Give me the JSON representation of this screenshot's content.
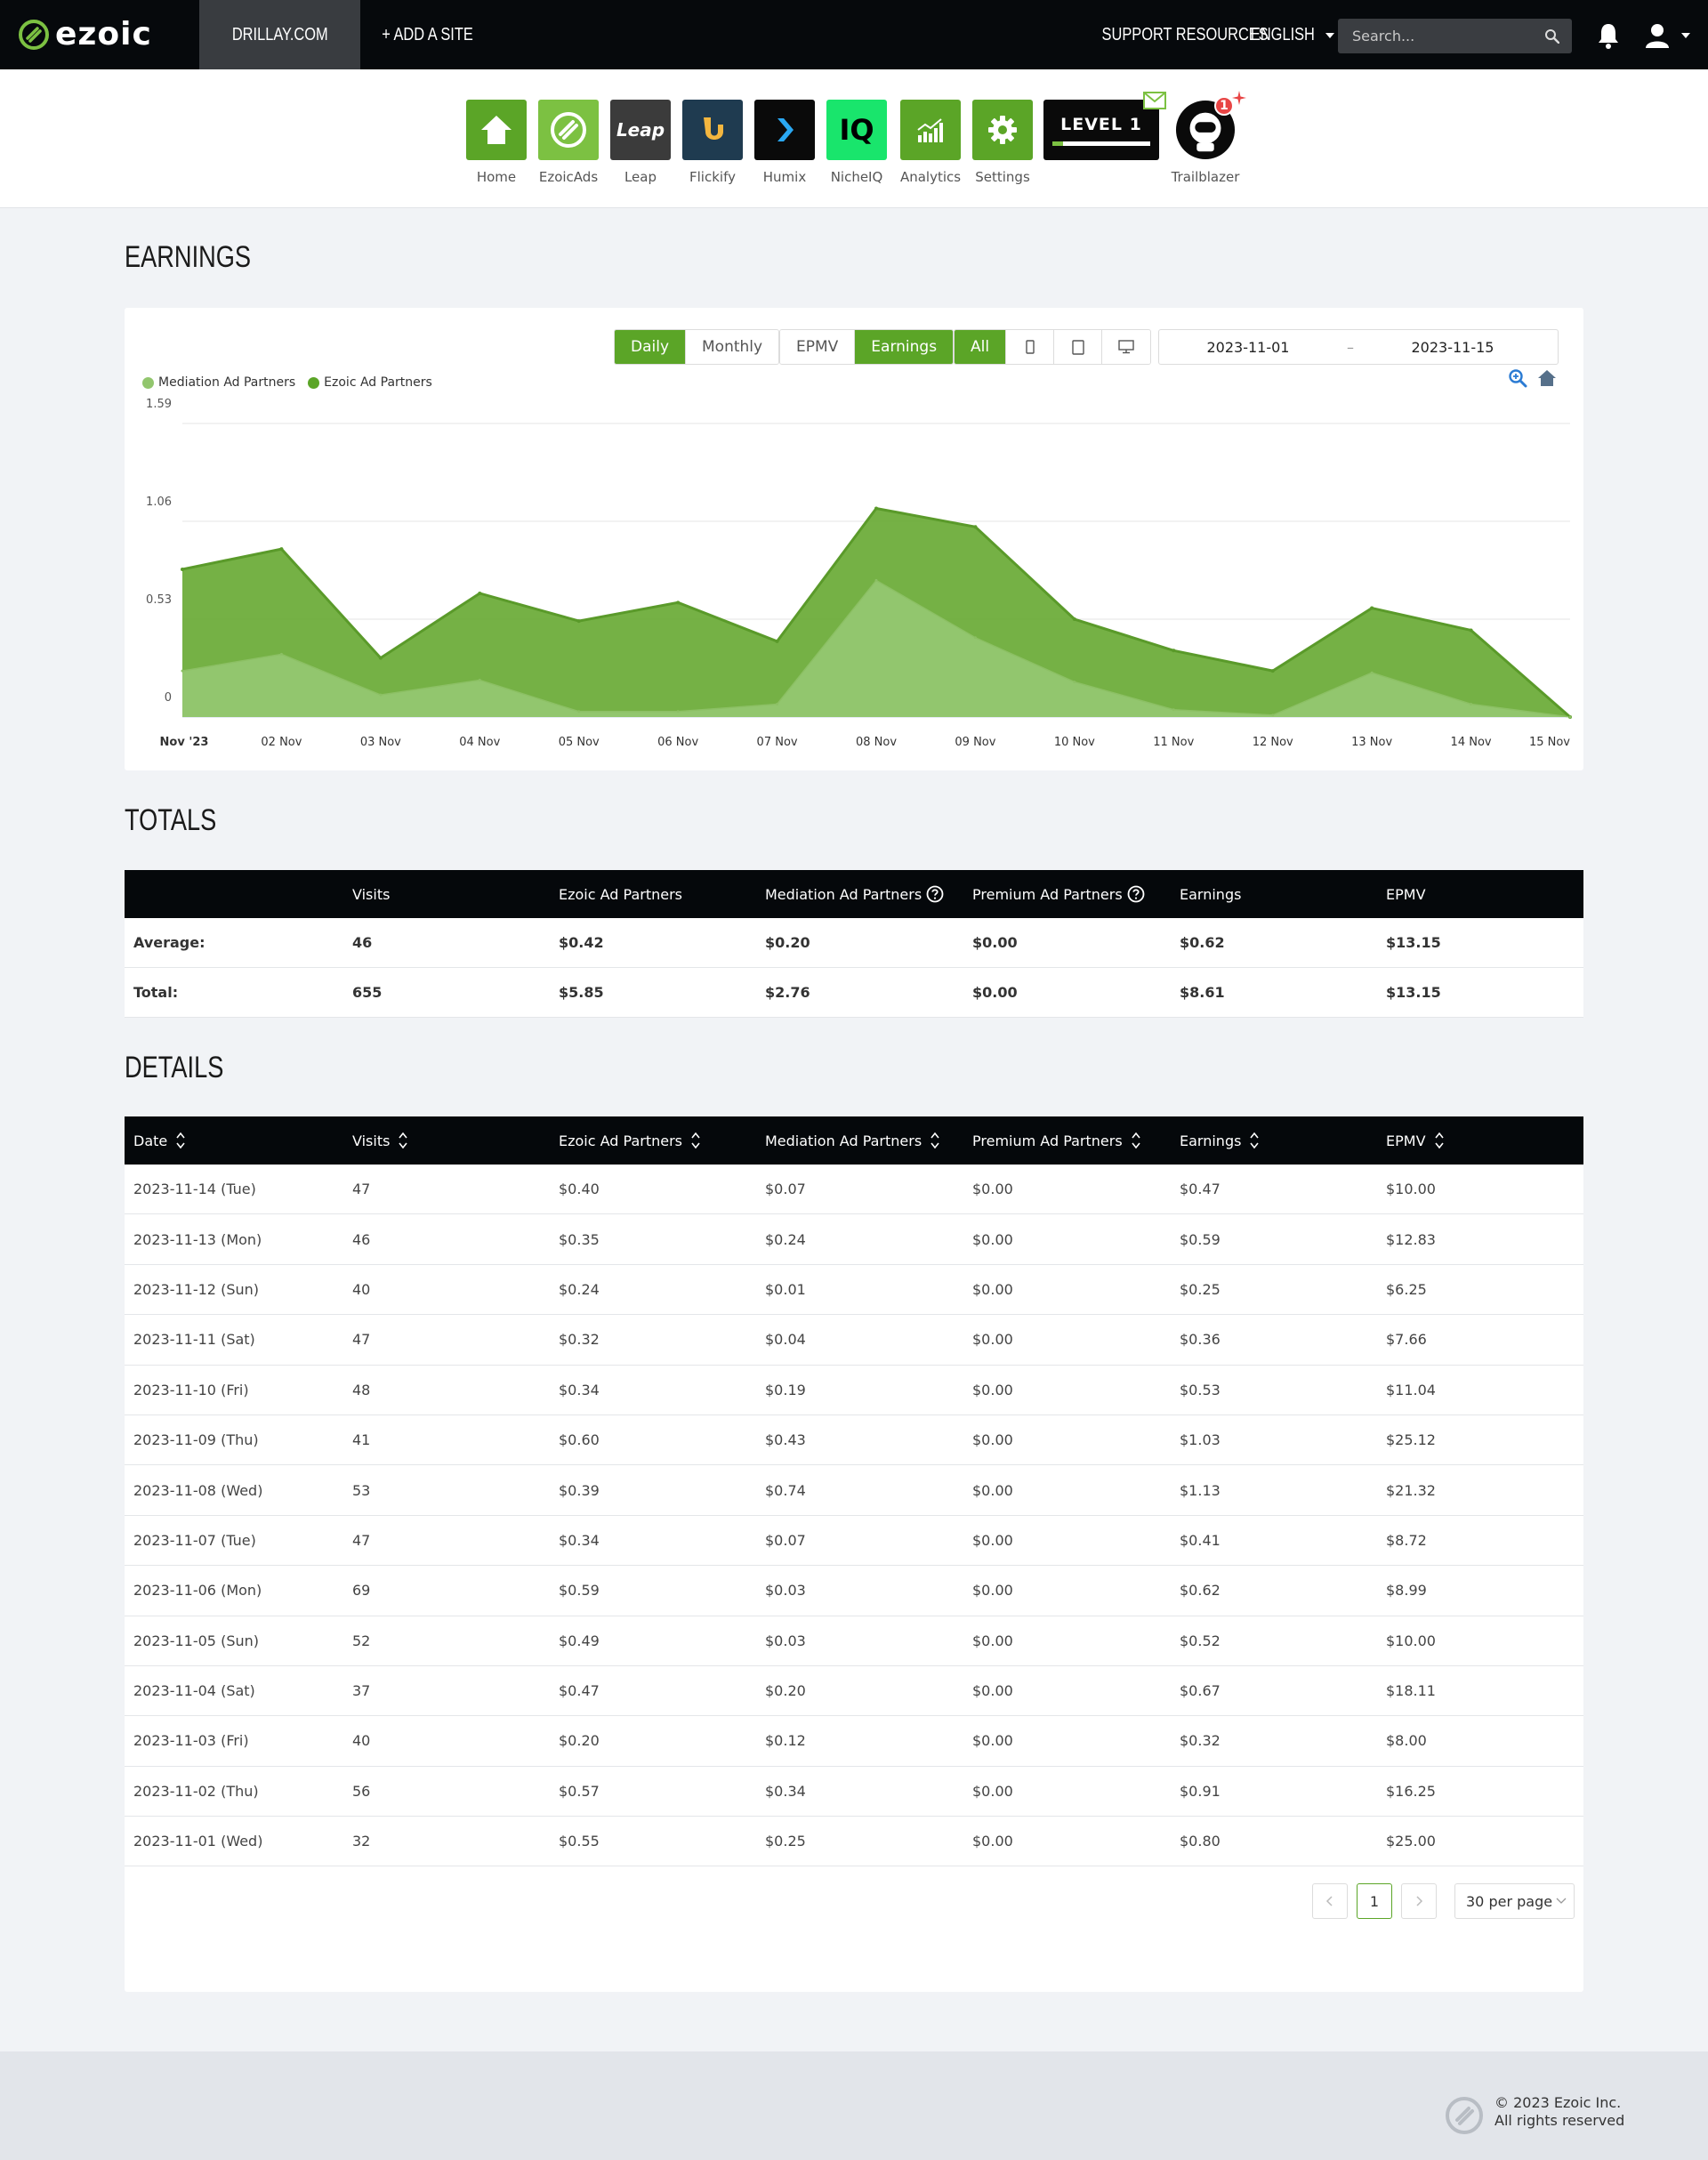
{
  "brand": {
    "name": "ezoic"
  },
  "topbar": {
    "site": "DRILLAY.COM",
    "add_site": "+ ADD A SITE",
    "support": "SUPPORT RESOURCES",
    "language": "ENGLISH",
    "search_placeholder": "Search..."
  },
  "apps": [
    {
      "label": "Home",
      "color": "#5ba527",
      "icon": "home-icon"
    },
    {
      "label": "EzoicAds",
      "color": "#7cc142",
      "icon": "ezoicads-icon"
    },
    {
      "label": "Leap",
      "color": "#3b3b3b",
      "icon": "leap-icon",
      "tile_text": "Leap"
    },
    {
      "label": "Flickify",
      "color": "#1f3b50",
      "icon": "flickify-icon"
    },
    {
      "label": "Humix",
      "color": "#0a0a0a",
      "icon": "humix-icon"
    },
    {
      "label": "NicheIQ",
      "color": "#19e56c",
      "icon": "nicheiq-icon",
      "tile_text": "IQ"
    },
    {
      "label": "Analytics",
      "color": "#5ba527",
      "icon": "analytics-icon"
    },
    {
      "label": "Settings",
      "color": "#5ba527",
      "icon": "gear-icon"
    },
    {
      "label": "",
      "color": "#0a0a0a",
      "icon": "level-badge-icon",
      "tile_text": "LEVEL 1"
    },
    {
      "label": "Trailblazer",
      "color": "#ffffff",
      "icon": "trailblazer-icon",
      "badge": "1"
    }
  ],
  "earnings": {
    "title": "EARNINGS",
    "period_buttons": [
      "Daily",
      "Monthly"
    ],
    "metric_buttons": [
      "EPMV",
      "Earnings"
    ],
    "device_buttons": [
      "All"
    ],
    "date_start": "2023-11-01",
    "date_sep": "–",
    "date_end": "2023-11-15"
  },
  "chart_data": {
    "type": "area",
    "stacked": true,
    "categories": [
      "Nov '23",
      "02 Nov",
      "03 Nov",
      "04 Nov",
      "05 Nov",
      "06 Nov",
      "07 Nov",
      "08 Nov",
      "09 Nov",
      "10 Nov",
      "11 Nov",
      "12 Nov",
      "13 Nov",
      "14 Nov",
      "15 Nov"
    ],
    "series": [
      {
        "name": "Mediation Ad Partners",
        "color": "#92c66e",
        "values": [
          0.25,
          0.34,
          0.12,
          0.2,
          0.03,
          0.03,
          0.07,
          0.74,
          0.43,
          0.19,
          0.04,
          0.01,
          0.24,
          0.07,
          0.0
        ]
      },
      {
        "name": "Ezoic Ad Partners",
        "color": "#6ead3b",
        "values": [
          0.55,
          0.57,
          0.2,
          0.47,
          0.49,
          0.59,
          0.34,
          0.39,
          0.6,
          0.34,
          0.32,
          0.24,
          0.35,
          0.4,
          0.0
        ]
      }
    ],
    "y_ticks": [
      "0",
      "0.53",
      "1.06",
      "1.59"
    ],
    "ylim": [
      0,
      1.59
    ],
    "grid": true,
    "legend": "top-left"
  },
  "totals": {
    "title": "TOTALS",
    "headers": [
      "",
      "Visits",
      "Ezoic Ad Partners",
      "Mediation Ad Partners",
      "Premium Ad Partners",
      "Earnings",
      "EPMV"
    ],
    "rows": [
      [
        "Average:",
        "46",
        "$0.42",
        "$0.20",
        "$0.00",
        "$0.62",
        "$13.15"
      ],
      [
        "Total:",
        "655",
        "$5.85",
        "$2.76",
        "$0.00",
        "$8.61",
        "$13.15"
      ]
    ]
  },
  "details": {
    "title": "DETAILS",
    "headers": [
      "Date",
      "Visits",
      "Ezoic Ad Partners",
      "Mediation Ad Partners",
      "Premium Ad Partners",
      "Earnings",
      "EPMV"
    ],
    "rows": [
      [
        "2023-11-14 (Tue)",
        "47",
        "$0.40",
        "$0.07",
        "$0.00",
        "$0.47",
        "$10.00"
      ],
      [
        "2023-11-13 (Mon)",
        "46",
        "$0.35",
        "$0.24",
        "$0.00",
        "$0.59",
        "$12.83"
      ],
      [
        "2023-11-12 (Sun)",
        "40",
        "$0.24",
        "$0.01",
        "$0.00",
        "$0.25",
        "$6.25"
      ],
      [
        "2023-11-11 (Sat)",
        "47",
        "$0.32",
        "$0.04",
        "$0.00",
        "$0.36",
        "$7.66"
      ],
      [
        "2023-11-10 (Fri)",
        "48",
        "$0.34",
        "$0.19",
        "$0.00",
        "$0.53",
        "$11.04"
      ],
      [
        "2023-11-09 (Thu)",
        "41",
        "$0.60",
        "$0.43",
        "$0.00",
        "$1.03",
        "$25.12"
      ],
      [
        "2023-11-08 (Wed)",
        "53",
        "$0.39",
        "$0.74",
        "$0.00",
        "$1.13",
        "$21.32"
      ],
      [
        "2023-11-07 (Tue)",
        "47",
        "$0.34",
        "$0.07",
        "$0.00",
        "$0.41",
        "$8.72"
      ],
      [
        "2023-11-06 (Mon)",
        "69",
        "$0.59",
        "$0.03",
        "$0.00",
        "$0.62",
        "$8.99"
      ],
      [
        "2023-11-05 (Sun)",
        "52",
        "$0.49",
        "$0.03",
        "$0.00",
        "$0.52",
        "$10.00"
      ],
      [
        "2023-11-04 (Sat)",
        "37",
        "$0.47",
        "$0.20",
        "$0.00",
        "$0.67",
        "$18.11"
      ],
      [
        "2023-11-03 (Fri)",
        "40",
        "$0.20",
        "$0.12",
        "$0.00",
        "$0.32",
        "$8.00"
      ],
      [
        "2023-11-02 (Thu)",
        "56",
        "$0.57",
        "$0.34",
        "$0.00",
        "$0.91",
        "$16.25"
      ],
      [
        "2023-11-01 (Wed)",
        "32",
        "$0.55",
        "$0.25",
        "$0.00",
        "$0.80",
        "$25.00"
      ]
    ]
  },
  "pagination": {
    "current": "1",
    "per_page": "30 per page"
  },
  "footer": {
    "copyright": "© 2023 Ezoic Inc.",
    "rights": "All rights reserved"
  }
}
